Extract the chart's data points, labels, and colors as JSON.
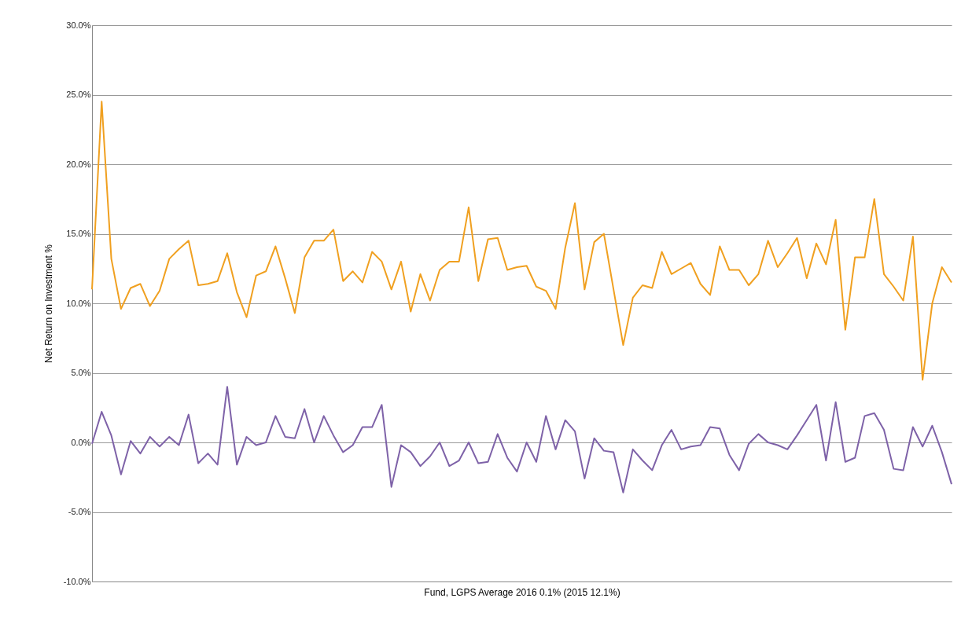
{
  "chart_data": {
    "type": "line",
    "xlabel": "Fund, LGPS Average 2016 0.1% (2015 12.1%)",
    "ylabel": "Net Return on Investment %",
    "categories": [
      null,
      null,
      null,
      null,
      null,
      null,
      null,
      null,
      null,
      null,
      null,
      null,
      null,
      null,
      null,
      null,
      null,
      null,
      null,
      null,
      null,
      null,
      null,
      null,
      null,
      null,
      null,
      null,
      null,
      null,
      null,
      null,
      null,
      null,
      null,
      null,
      null,
      null,
      null,
      null,
      null,
      null,
      null,
      null,
      null,
      null,
      null,
      null,
      null,
      null,
      null,
      null,
      null,
      null,
      null,
      null,
      null,
      null,
      null,
      null,
      null,
      null,
      null,
      null,
      null,
      null,
      null,
      null,
      null,
      null,
      null,
      null,
      null,
      null,
      null,
      null,
      null,
      null,
      null,
      null,
      null,
      null,
      null,
      null,
      null,
      null,
      null,
      null,
      null,
      null
    ],
    "series": [
      {
        "color": "#f0a020",
        "values": [
          11.0,
          24.5,
          13.2,
          9.6,
          11.1,
          11.4,
          9.8,
          10.9,
          13.2,
          13.9,
          14.5,
          11.3,
          11.4,
          11.6,
          13.6,
          10.8,
          9.0,
          12.0,
          12.3,
          14.1,
          11.8,
          9.3,
          13.3,
          14.5,
          14.5,
          15.3,
          11.6,
          12.3,
          11.5,
          13.7,
          13.0,
          11.0,
          13.0,
          9.4,
          12.1,
          10.2,
          12.4,
          13.0,
          13.0,
          16.9,
          11.6,
          14.6,
          14.7,
          12.4,
          12.6,
          12.7,
          11.2,
          10.9,
          9.6,
          14.0,
          17.2,
          11.0,
          14.4,
          15.0,
          11.0,
          7.0,
          10.4,
          11.3,
          11.1,
          13.7,
          12.1,
          12.5,
          12.9,
          11.4,
          10.6,
          14.1,
          12.4,
          12.4,
          11.3,
          12.1,
          14.5,
          12.6,
          13.6,
          14.7,
          11.8,
          14.3,
          12.8,
          16.0,
          8.1,
          13.3,
          13.3,
          17.5,
          12.1,
          11.2,
          10.2,
          14.8,
          4.5,
          10.0,
          12.6,
          11.5
        ]
      },
      {
        "color": "#7e62a8",
        "values": [
          -0.1,
          2.2,
          0.5,
          -2.3,
          0.1,
          -0.8,
          0.4,
          -0.3,
          0.4,
          -0.2,
          2.0,
          -1.5,
          -0.8,
          -1.6,
          4.0,
          -1.6,
          0.4,
          -0.2,
          0.0,
          1.9,
          0.4,
          0.3,
          2.4,
          0.0,
          1.9,
          0.5,
          -0.7,
          -0.2,
          1.1,
          1.1,
          2.7,
          -3.2,
          -0.2,
          -0.7,
          -1.7,
          -1.0,
          0.0,
          -1.7,
          -1.3,
          0.0,
          -1.5,
          -1.4,
          0.6,
          -1.1,
          -2.1,
          0.0,
          -1.4,
          1.9,
          -0.5,
          1.6,
          0.8,
          -2.6,
          0.3,
          -0.6,
          -0.7,
          -3.6,
          -0.5,
          -1.3,
          -2.0,
          -0.2,
          0.9,
          -0.5,
          -0.3,
          -0.2,
          1.1,
          1.0,
          -0.9,
          -2.0,
          -0.1,
          0.6,
          0.0,
          -0.2,
          -0.5,
          0.5,
          1.6,
          2.7,
          -1.3,
          2.9,
          -1.4,
          -1.1,
          1.9,
          2.1,
          0.9,
          -1.9,
          -2.0,
          1.1,
          -0.3,
          1.2,
          -0.7,
          -3.0
        ]
      }
    ],
    "ylim": [
      -10,
      30
    ],
    "yticks": [
      {
        "value": -10,
        "label": "-10.0%"
      },
      {
        "value": -5,
        "label": "-5.0%"
      },
      {
        "value": 0,
        "label": "0.0%"
      },
      {
        "value": 5,
        "label": "5.0%"
      },
      {
        "value": 10,
        "label": "10.0%"
      },
      {
        "value": 15,
        "label": "15.0%"
      },
      {
        "value": 20,
        "label": "20.0%"
      },
      {
        "value": 25,
        "label": "25.0%"
      },
      {
        "value": 30,
        "label": "30.0%"
      }
    ],
    "grid": "y",
    "tick_labels": "y",
    "line_style": "solid"
  }
}
